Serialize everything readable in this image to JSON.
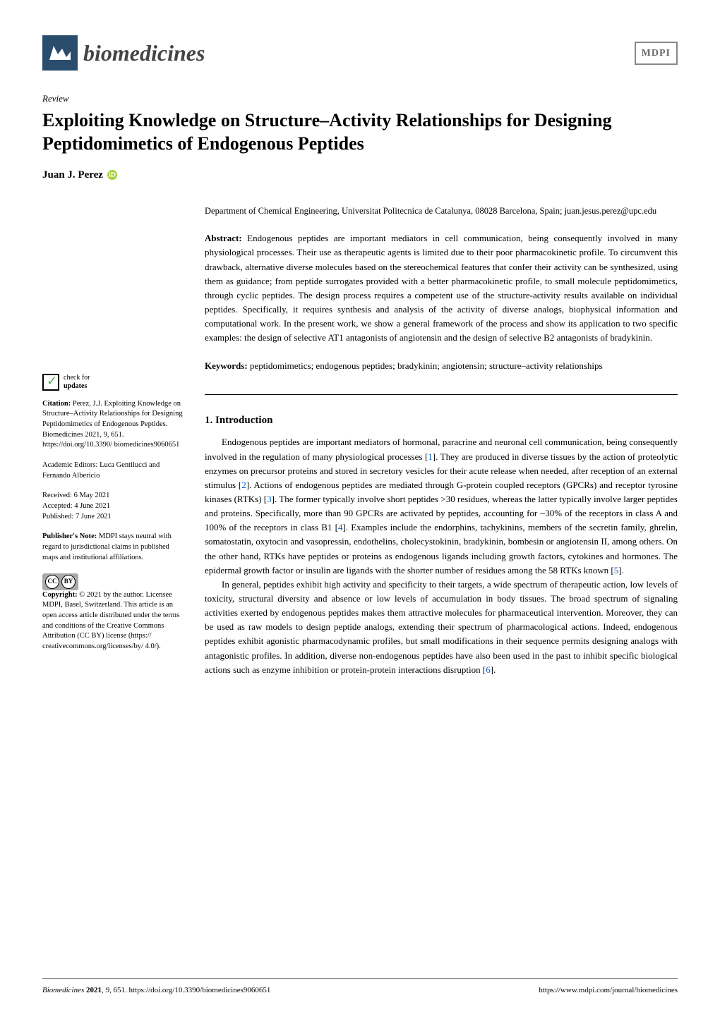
{
  "header": {
    "journal_name": "biomedicines",
    "publisher_logo": "MDPI"
  },
  "article": {
    "type_label": "Review",
    "title": "Exploiting Knowledge on Structure–Activity Relationships for Designing Peptidomimetics of Endogenous Peptides",
    "author": "Juan J. Perez",
    "affiliation": "Department of Chemical Engineering, Universitat Politecnica de Catalunya, 08028 Barcelona, Spain; juan.jesus.perez@upc.edu",
    "abstract_label": "Abstract:",
    "abstract_text": " Endogenous peptides are important mediators in cell communication, being consequently involved in many physiological processes. Their use as therapeutic agents is limited due to their poor pharmacokinetic profile. To circumvent this drawback, alternative diverse molecules based on the stereochemical features that confer their activity can be synthesized, using them as guidance; from peptide surrogates provided with a better pharmacokinetic profile, to small molecule peptidomimetics, through cyclic peptides. The design process requires a competent use of the structure-activity results available on individual peptides. Specifically, it requires synthesis and analysis of the activity of diverse analogs, biophysical information and computational work. In the present work, we show a general framework of the process and show its application to two specific examples: the design of selective AT1 antagonists of angiotensin and the design of selective B2 antagonists of bradykinin.",
    "keywords_label": "Keywords:",
    "keywords_text": " peptidomimetics; endogenous peptides; bradykinin; angiotensin; structure–activity relationships"
  },
  "sidebar": {
    "check_updates": "check for updates",
    "citation_label": "Citation:",
    "citation_text": " Perez, J.J. Exploiting Knowledge on Structure–Activity Relationships for Designing Peptidomimetics of Endogenous Peptides. Biomedicines 2021, 9, 651. https://doi.org/10.3390/ biomedicines9060651",
    "editors_label": "Academic Editors:",
    "editors_text": " Luca Gentilucci and Fernando Albericio",
    "received_label": "Received:",
    "received_text": " 6 May 2021",
    "accepted_label": "Accepted:",
    "accepted_text": " 4 June 2021",
    "published_label": "Published:",
    "published_text": " 7 June 2021",
    "publisher_note_label": "Publisher's Note:",
    "publisher_note_text": " MDPI stays neutral with regard to jurisdictional claims in published maps and institutional affiliations.",
    "copyright_label": "Copyright:",
    "copyright_text": " © 2021 by the author. Licensee MDPI, Basel, Switzerland. This article is an open access article distributed under the terms and conditions of the Creative Commons Attribution (CC BY) license (https:// creativecommons.org/licenses/by/ 4.0/)."
  },
  "section": {
    "heading": "1. Introduction",
    "p1_part1": "Endogenous peptides are important mediators of hormonal, paracrine and neuronal cell communication, being consequently involved in the regulation of many physiological processes [",
    "ref1": "1",
    "p1_part2": "]. They are produced in diverse tissues by the action of proteolytic enzymes on precursor proteins and stored in secretory vesicles for their acute release when needed, after reception of an external stimulus [",
    "ref2": "2",
    "p1_part3": "]. Actions of endogenous peptides are mediated through G-protein coupled receptors (GPCRs) and receptor tyrosine kinases (RTKs) [",
    "ref3": "3",
    "p1_part4": "]. The former typically involve short peptides >30 residues, whereas the latter typically involve larger peptides and proteins. Specifically, more than 90 GPCRs are activated by peptides, accounting for ~30% of the receptors in class A and 100% of the receptors in class B1 [",
    "ref4": "4",
    "p1_part5": "]. Examples include the endorphins, tachykinins, members of the secretin family, ghrelin, somatostatin, oxytocin and vasopressin, endothelins, cholecystokinin, bradykinin, bombesin or angiotensin II, among others. On the other hand, RTKs have peptides or proteins as endogenous ligands including growth factors, cytokines and hormones. The epidermal growth factor or insulin are ligands with the shorter number of residues among the 58 RTKs known [",
    "ref5": "5",
    "p1_part6": "].",
    "p2_part1": "In general, peptides exhibit high activity and specificity to their targets, a wide spectrum of therapeutic action, low levels of toxicity, structural diversity and absence or low levels of accumulation in body tissues. The broad spectrum of signaling activities exerted by endogenous peptides makes them attractive molecules for pharmaceutical intervention. Moreover, they can be used as raw models to design peptide analogs, extending their spectrum of pharmacological actions. Indeed, endogenous peptides exhibit agonistic pharmacodynamic profiles, but small modifications in their sequence permits designing analogs with antagonistic profiles. In addition, diverse non-endogenous peptides have also been used in the past to inhibit specific biological actions such as enzyme inhibition or protein-protein interactions disruption [",
    "ref6": "6",
    "p2_part2": "]."
  },
  "footer": {
    "left": "Biomedicines 2021, 9, 651. https://doi.org/10.3390/biomedicines9060651",
    "right": "https://www.mdpi.com/journal/biomedicines"
  },
  "colors": {
    "journal_icon_bg": "#2a4d6e",
    "orcid_bg": "#a6ce39",
    "ref_link": "#0066cc",
    "text": "#000000",
    "background": "#ffffff"
  }
}
